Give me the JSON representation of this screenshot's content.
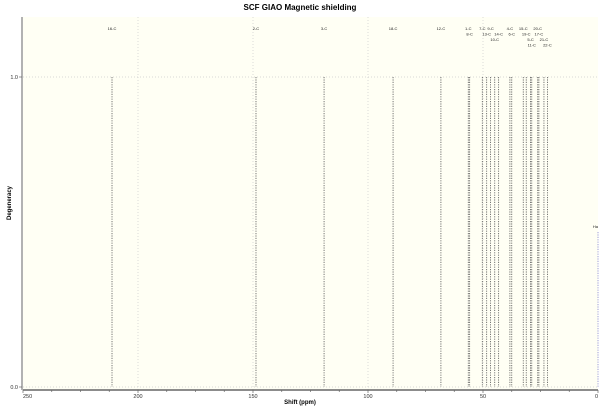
{
  "chart_data": {
    "type": "bar",
    "title": "SCF GIAO Magnetic shielding",
    "xlabel": "Shift (ppm)",
    "ylabel": "Degeneracy",
    "xlim": [
      250,
      0
    ],
    "ylim": [
      0,
      1
    ],
    "x_reversed": true,
    "xticks": [
      "250",
      "200",
      "150",
      "100",
      "50",
      "0"
    ],
    "yticks": [
      "0.0",
      "1.0"
    ],
    "grid": true,
    "background_color": "#fffff4",
    "peak_color": "#555555",
    "peaks": [
      {
        "shift": 211.3,
        "degeneracy": 1,
        "label": "16-C"
      },
      {
        "shift": 148.7,
        "degeneracy": 1,
        "label": "2-C"
      },
      {
        "shift": 119.1,
        "degeneracy": 1,
        "label": "3-C"
      },
      {
        "shift": 89.1,
        "degeneracy": 1,
        "label": "18-C"
      },
      {
        "shift": 68.3,
        "degeneracy": 1,
        "label": "12-C"
      },
      {
        "shift": 56.4,
        "degeneracy": 1,
        "label": "1-C"
      },
      {
        "shift": 55.8,
        "degeneracy": 1,
        "label": "8-C"
      },
      {
        "shift": 50.3,
        "degeneracy": 1,
        "label": "7-C"
      },
      {
        "shift": 48.4,
        "degeneracy": 1,
        "label": "13-C"
      },
      {
        "shift": 46.7,
        "degeneracy": 1,
        "label": "9-C"
      },
      {
        "shift": 44.9,
        "degeneracy": 1,
        "label": "10-C"
      },
      {
        "shift": 43.2,
        "degeneracy": 1,
        "label": "14-C"
      },
      {
        "shift": 38.3,
        "degeneracy": 1,
        "label": "4-C"
      },
      {
        "shift": 37.5,
        "degeneracy": 1,
        "label": "6-C"
      },
      {
        "shift": 32.5,
        "degeneracy": 1,
        "label": "15-C"
      },
      {
        "shift": 31.2,
        "degeneracy": 1,
        "label": "19-C"
      },
      {
        "shift": 29.3,
        "degeneracy": 1,
        "label": "5-C"
      },
      {
        "shift": 28.8,
        "degeneracy": 1,
        "label": "11-C"
      },
      {
        "shift": 26.2,
        "degeneracy": 1,
        "label": "20-C"
      },
      {
        "shift": 25.7,
        "degeneracy": 1,
        "label": "17-C"
      },
      {
        "shift": 23.5,
        "degeneracy": 1,
        "label": "21-C"
      },
      {
        "shift": 22.0,
        "degeneracy": 1,
        "label": "22-C"
      },
      {
        "shift": 0.0,
        "degeneracy": 0.5,
        "label": "Ha"
      }
    ]
  }
}
